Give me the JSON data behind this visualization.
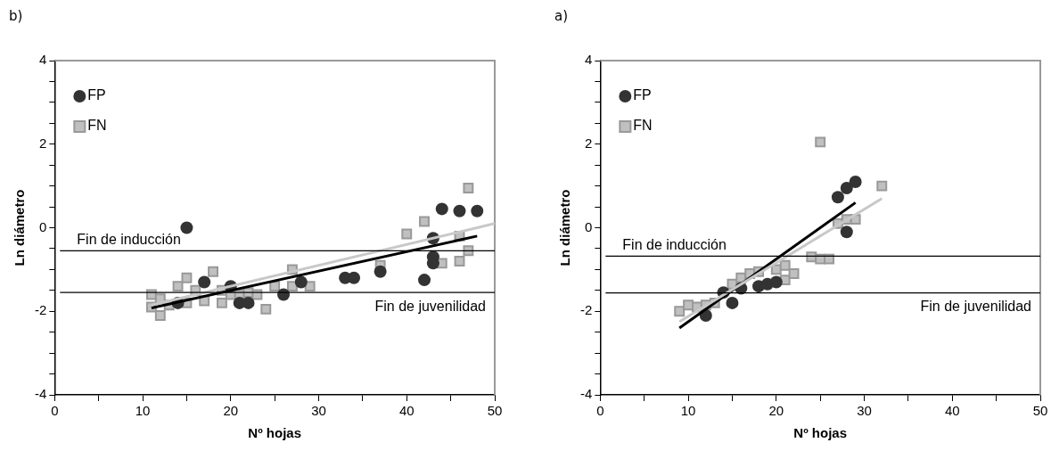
{
  "chart_data": [
    {
      "type": "scatter",
      "title": "b)",
      "xlabel": "Nº hojas",
      "ylabel": "Ln diámetro",
      "xlim": [
        0,
        50
      ],
      "ylim": [
        -4,
        4
      ],
      "xticks": [
        0,
        {
          "value": 5,
          "label": null
        },
        10,
        {
          "value": 15,
          "label": null
        },
        20,
        {
          "value": 25,
          "label": null
        },
        30,
        {
          "value": 35,
          "label": null
        },
        40,
        {
          "value": 45,
          "label": null
        },
        50
      ],
      "yticks": [
        -4,
        {
          "value": -3.5,
          "label": null
        },
        {
          "value": -3,
          "label": null
        },
        {
          "value": -2.5,
          "label": null
        },
        -2,
        {
          "value": -1.5,
          "label": null
        },
        {
          "value": -1,
          "label": null
        },
        {
          "value": -0.5,
          "label": null
        },
        0,
        {
          "value": 0.5,
          "label": null
        },
        {
          "value": 1,
          "label": null
        },
        {
          "value": 1.5,
          "label": null
        },
        2,
        {
          "value": 2.5,
          "label": null
        },
        {
          "value": 3,
          "label": null
        },
        {
          "value": 3.5,
          "label": null
        },
        4
      ],
      "grid": false,
      "legend": "top left",
      "series": [
        {
          "name": "FP",
          "type": "scatter",
          "marker": "circle",
          "color": "#333333",
          "x": [
            14,
            15,
            17,
            20,
            21,
            22,
            26,
            28,
            33,
            34,
            37,
            42,
            43,
            43,
            43,
            44,
            46,
            48
          ],
          "values": [
            -1.8,
            0.0,
            -1.3,
            -1.4,
            -1.8,
            -1.8,
            -1.6,
            -1.3,
            -1.2,
            -1.2,
            -1.05,
            -1.25,
            -0.85,
            -0.7,
            -0.25,
            0.45,
            0.4,
            0.4
          ]
        },
        {
          "name": "FN",
          "type": "scatter",
          "marker": "square",
          "color": "#c0c0c0",
          "x": [
            11,
            11,
            12,
            12,
            13,
            14,
            15,
            15,
            16,
            17,
            18,
            19,
            19,
            20,
            21,
            22,
            23,
            24,
            25,
            27,
            27,
            29,
            37,
            40,
            42,
            44,
            46,
            46,
            47,
            47
          ],
          "values": [
            -1.6,
            -1.9,
            -1.7,
            -2.1,
            -1.85,
            -1.4,
            -1.2,
            -1.8,
            -1.5,
            -1.75,
            -1.05,
            -1.5,
            -1.8,
            -1.6,
            -1.6,
            -1.55,
            -1.6,
            -1.95,
            -1.4,
            -1.0,
            -1.4,
            -1.4,
            -0.9,
            -0.15,
            0.15,
            -0.85,
            -0.2,
            -0.8,
            -0.55,
            0.95
          ]
        },
        {
          "type": "line",
          "marker": "none",
          "color": "#c8c8c8",
          "x": [
            11,
            50
          ],
          "values": [
            -1.85,
            0.1
          ]
        },
        {
          "type": "line",
          "marker": "none",
          "color": "#000000",
          "x": [
            11,
            48
          ],
          "values": [
            -1.92,
            -0.2
          ]
        }
      ],
      "ref_lines": [
        {
          "axis": "y",
          "value": -0.55,
          "label": "Fin de inducción",
          "color": "#000000"
        },
        {
          "axis": "y",
          "value": -1.55,
          "label": "Fin de juvenilidad",
          "color": "#000000"
        }
      ]
    },
    {
      "type": "scatter",
      "title": "a)",
      "xlabel": "Nº hojas",
      "ylabel": "Ln diámetro",
      "xlim": [
        0,
        50
      ],
      "ylim": [
        -4,
        4
      ],
      "xticks": [
        0,
        {
          "value": 5,
          "label": null
        },
        10,
        {
          "value": 15,
          "label": null
        },
        20,
        {
          "value": 25,
          "label": null
        },
        30,
        {
          "value": 35,
          "label": null
        },
        40,
        {
          "value": 45,
          "label": null
        },
        50
      ],
      "yticks": [
        -4,
        {
          "value": -3.5,
          "label": null
        },
        {
          "value": -3,
          "label": null
        },
        {
          "value": -2.5,
          "label": null
        },
        -2,
        {
          "value": -1.5,
          "label": null
        },
        {
          "value": -1,
          "label": null
        },
        {
          "value": -0.5,
          "label": null
        },
        0,
        {
          "value": 0.5,
          "label": null
        },
        {
          "value": 1,
          "label": null
        },
        {
          "value": 1.5,
          "label": null
        },
        2,
        {
          "value": 2.5,
          "label": null
        },
        {
          "value": 3,
          "label": null
        },
        {
          "value": 3.5,
          "label": null
        },
        4
      ],
      "grid": false,
      "legend": "top left",
      "series": [
        {
          "name": "FP",
          "type": "scatter",
          "marker": "circle",
          "color": "#333333",
          "x": [
            12,
            14,
            15,
            16,
            18,
            19,
            20,
            27,
            28,
            28,
            29
          ],
          "values": [
            -2.1,
            -1.55,
            -1.8,
            -1.45,
            -1.4,
            -1.35,
            -1.3,
            0.73,
            0.95,
            -0.1,
            1.1
          ]
        },
        {
          "name": "FN",
          "type": "scatter",
          "marker": "square",
          "color": "#c0c0c0",
          "x": [
            9,
            10,
            11,
            12,
            13,
            15,
            16,
            17,
            18,
            20,
            21,
            21,
            22,
            24,
            25,
            26,
            25,
            27,
            28,
            29,
            32
          ],
          "values": [
            -2.0,
            -1.85,
            -1.9,
            -1.85,
            -1.8,
            -1.35,
            -1.2,
            -1.1,
            -1.05,
            -1.0,
            -0.9,
            -1.25,
            -1.1,
            -0.7,
            -0.75,
            -0.75,
            2.05,
            0.1,
            0.2,
            0.2,
            1.0
          ]
        },
        {
          "type": "line",
          "marker": "none",
          "color": "#c8c8c8",
          "x": [
            9,
            32
          ],
          "values": [
            -2.25,
            0.7
          ]
        },
        {
          "type": "line",
          "marker": "none",
          "color": "#000000",
          "x": [
            9,
            29
          ],
          "values": [
            -2.4,
            0.6
          ]
        }
      ],
      "ref_lines": [
        {
          "axis": "y",
          "value": -0.68,
          "label": "Fin de inducción",
          "color": "#000000"
        },
        {
          "axis": "y",
          "value": -1.56,
          "label": "Fin de juvenilidad",
          "color": "#000000"
        }
      ]
    }
  ]
}
